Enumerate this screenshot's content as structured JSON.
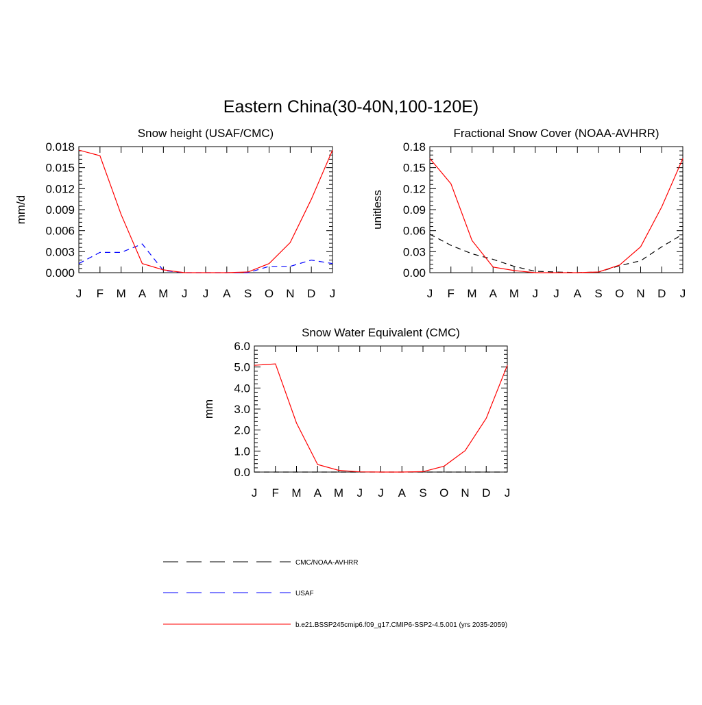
{
  "page_title": "Eastern China(30-40N,100-120E)",
  "colors": {
    "model": "#ff0000",
    "cmc_noaa": "#000000",
    "usaf": "#0000ff"
  },
  "chart_data": [
    {
      "type": "line",
      "title": "Snow height (USAF/CMC)",
      "ylabel": "mm/d",
      "xlabel": "",
      "categories": [
        "J",
        "F",
        "M",
        "A",
        "M",
        "J",
        "J",
        "A",
        "S",
        "O",
        "N",
        "D",
        "J"
      ],
      "ylim": [
        0,
        0.018
      ],
      "yticks": [
        0,
        0.003,
        0.006,
        0.009,
        0.012,
        0.015,
        0.018
      ],
      "ytick_labels": [
        "0.000",
        "0.003",
        "0.006",
        "0.009",
        "0.012",
        "0.015",
        "0.018"
      ],
      "grid": false,
      "series": [
        {
          "name": "b.e21.BSSP245cmip6.f09_g17.CMIP6-SSP2-4.5.001 (yrs 2035-2059)",
          "color": "#ff0000",
          "dash": "none",
          "values": [
            0.0175,
            0.0167,
            0.0083,
            0.0013,
            0.0004,
            0.0,
            0.0,
            0.0,
            0.0001,
            0.0013,
            0.0043,
            0.0105,
            0.0175
          ]
        },
        {
          "name": "USAF",
          "color": "#0000ff",
          "dash": "8,6",
          "values": [
            0.0013,
            0.0029,
            0.0029,
            0.0041,
            0.0003,
            0.0,
            0.0,
            0.0,
            0.0,
            0.0009,
            0.0009,
            0.0018,
            0.0013
          ]
        }
      ]
    },
    {
      "type": "line",
      "title": "Fractional Snow Cover (NOAA-AVHRR)",
      "ylabel": "unitless",
      "xlabel": "",
      "categories": [
        "J",
        "F",
        "M",
        "A",
        "M",
        "J",
        "J",
        "A",
        "S",
        "O",
        "N",
        "D",
        "J"
      ],
      "ylim": [
        0,
        0.18
      ],
      "yticks": [
        0,
        0.03,
        0.06,
        0.09,
        0.12,
        0.15,
        0.18
      ],
      "ytick_labels": [
        "0.00",
        "0.03",
        "0.06",
        "0.09",
        "0.12",
        "0.15",
        "0.18"
      ],
      "grid": false,
      "series": [
        {
          "name": "b.e21.BSSP245cmip6.f09_g17.CMIP6-SSP2-4.5.001 (yrs 2035-2059)",
          "color": "#ff0000",
          "dash": "none",
          "values": [
            0.163,
            0.127,
            0.046,
            0.008,
            0.003,
            0.0,
            0.0,
            0.0,
            0.001,
            0.011,
            0.037,
            0.094,
            0.163
          ]
        },
        {
          "name": "CMC/NOAA-AVHRR",
          "color": "#000000",
          "dash": "8,6",
          "values": [
            0.055,
            0.039,
            0.027,
            0.019,
            0.009,
            0.002,
            0.001,
            0.0,
            0.001,
            0.01,
            0.017,
            0.037,
            0.055
          ]
        }
      ]
    },
    {
      "type": "line",
      "title": "Snow Water Equivalent (CMC)",
      "ylabel": "mm",
      "xlabel": "",
      "categories": [
        "J",
        "F",
        "M",
        "A",
        "M",
        "J",
        "J",
        "A",
        "S",
        "O",
        "N",
        "D",
        "J"
      ],
      "ylim": [
        0,
        6.0
      ],
      "yticks": [
        0,
        1,
        2,
        3,
        4,
        5,
        6
      ],
      "ytick_labels": [
        "0.0",
        "1.0",
        "2.0",
        "3.0",
        "4.0",
        "5.0",
        "6.0"
      ],
      "grid": false,
      "series": [
        {
          "name": "b.e21.BSSP245cmip6.f09_g17.CMIP6-SSP2-4.5.001 (yrs 2035-2059)",
          "color": "#ff0000",
          "dash": "none",
          "values": [
            5.08,
            5.15,
            2.33,
            0.36,
            0.08,
            0.01,
            0.0,
            0.0,
            0.02,
            0.28,
            1.02,
            2.56,
            5.08
          ]
        },
        {
          "name": "CMC/NOAA-AVHRR",
          "color": "#000000",
          "dash": "8,6",
          "values": [
            0,
            0,
            0,
            0,
            0,
            0,
            0,
            0,
            0,
            0,
            0,
            0,
            0
          ]
        }
      ]
    }
  ],
  "legend": {
    "placement": "bottom",
    "items": [
      {
        "label": "CMC/NOAA-AVHRR",
        "color": "#000000",
        "dash": "22,12"
      },
      {
        "label": "USAF",
        "color": "#0000ff",
        "dash": "22,12"
      },
      {
        "label": "b.e21.BSSP245cmip6.f09_g17.CMIP6-SSP2-4.5.001 (yrs 2035-2059)",
        "color": "#ff0000",
        "dash": "none"
      }
    ]
  }
}
